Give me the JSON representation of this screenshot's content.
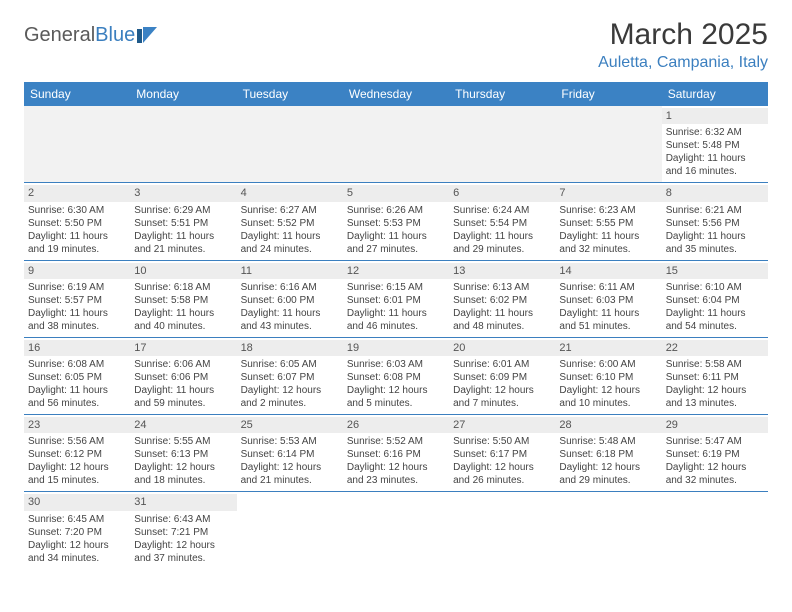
{
  "logo": {
    "part1": "General",
    "part2": "Blue"
  },
  "title": "March 2025",
  "subtitle": "Auletta, Campania, Italy",
  "columns": [
    "Sunday",
    "Monday",
    "Tuesday",
    "Wednesday",
    "Thursday",
    "Friday",
    "Saturday"
  ],
  "colors": {
    "header_bg": "#3b82c4",
    "header_text": "#ffffff",
    "accent": "#3b7fbf",
    "daynum_bg": "#ededed",
    "text": "#444444"
  },
  "weeks": [
    [
      null,
      null,
      null,
      null,
      null,
      null,
      {
        "n": "1",
        "sr": "Sunrise: 6:32 AM",
        "ss": "Sunset: 5:48 PM",
        "dl1": "Daylight: 11 hours",
        "dl2": "and 16 minutes."
      }
    ],
    [
      {
        "n": "2",
        "sr": "Sunrise: 6:30 AM",
        "ss": "Sunset: 5:50 PM",
        "dl1": "Daylight: 11 hours",
        "dl2": "and 19 minutes."
      },
      {
        "n": "3",
        "sr": "Sunrise: 6:29 AM",
        "ss": "Sunset: 5:51 PM",
        "dl1": "Daylight: 11 hours",
        "dl2": "and 21 minutes."
      },
      {
        "n": "4",
        "sr": "Sunrise: 6:27 AM",
        "ss": "Sunset: 5:52 PM",
        "dl1": "Daylight: 11 hours",
        "dl2": "and 24 minutes."
      },
      {
        "n": "5",
        "sr": "Sunrise: 6:26 AM",
        "ss": "Sunset: 5:53 PM",
        "dl1": "Daylight: 11 hours",
        "dl2": "and 27 minutes."
      },
      {
        "n": "6",
        "sr": "Sunrise: 6:24 AM",
        "ss": "Sunset: 5:54 PM",
        "dl1": "Daylight: 11 hours",
        "dl2": "and 29 minutes."
      },
      {
        "n": "7",
        "sr": "Sunrise: 6:23 AM",
        "ss": "Sunset: 5:55 PM",
        "dl1": "Daylight: 11 hours",
        "dl2": "and 32 minutes."
      },
      {
        "n": "8",
        "sr": "Sunrise: 6:21 AM",
        "ss": "Sunset: 5:56 PM",
        "dl1": "Daylight: 11 hours",
        "dl2": "and 35 minutes."
      }
    ],
    [
      {
        "n": "9",
        "sr": "Sunrise: 6:19 AM",
        "ss": "Sunset: 5:57 PM",
        "dl1": "Daylight: 11 hours",
        "dl2": "and 38 minutes."
      },
      {
        "n": "10",
        "sr": "Sunrise: 6:18 AM",
        "ss": "Sunset: 5:58 PM",
        "dl1": "Daylight: 11 hours",
        "dl2": "and 40 minutes."
      },
      {
        "n": "11",
        "sr": "Sunrise: 6:16 AM",
        "ss": "Sunset: 6:00 PM",
        "dl1": "Daylight: 11 hours",
        "dl2": "and 43 minutes."
      },
      {
        "n": "12",
        "sr": "Sunrise: 6:15 AM",
        "ss": "Sunset: 6:01 PM",
        "dl1": "Daylight: 11 hours",
        "dl2": "and 46 minutes."
      },
      {
        "n": "13",
        "sr": "Sunrise: 6:13 AM",
        "ss": "Sunset: 6:02 PM",
        "dl1": "Daylight: 11 hours",
        "dl2": "and 48 minutes."
      },
      {
        "n": "14",
        "sr": "Sunrise: 6:11 AM",
        "ss": "Sunset: 6:03 PM",
        "dl1": "Daylight: 11 hours",
        "dl2": "and 51 minutes."
      },
      {
        "n": "15",
        "sr": "Sunrise: 6:10 AM",
        "ss": "Sunset: 6:04 PM",
        "dl1": "Daylight: 11 hours",
        "dl2": "and 54 minutes."
      }
    ],
    [
      {
        "n": "16",
        "sr": "Sunrise: 6:08 AM",
        "ss": "Sunset: 6:05 PM",
        "dl1": "Daylight: 11 hours",
        "dl2": "and 56 minutes."
      },
      {
        "n": "17",
        "sr": "Sunrise: 6:06 AM",
        "ss": "Sunset: 6:06 PM",
        "dl1": "Daylight: 11 hours",
        "dl2": "and 59 minutes."
      },
      {
        "n": "18",
        "sr": "Sunrise: 6:05 AM",
        "ss": "Sunset: 6:07 PM",
        "dl1": "Daylight: 12 hours",
        "dl2": "and 2 minutes."
      },
      {
        "n": "19",
        "sr": "Sunrise: 6:03 AM",
        "ss": "Sunset: 6:08 PM",
        "dl1": "Daylight: 12 hours",
        "dl2": "and 5 minutes."
      },
      {
        "n": "20",
        "sr": "Sunrise: 6:01 AM",
        "ss": "Sunset: 6:09 PM",
        "dl1": "Daylight: 12 hours",
        "dl2": "and 7 minutes."
      },
      {
        "n": "21",
        "sr": "Sunrise: 6:00 AM",
        "ss": "Sunset: 6:10 PM",
        "dl1": "Daylight: 12 hours",
        "dl2": "and 10 minutes."
      },
      {
        "n": "22",
        "sr": "Sunrise: 5:58 AM",
        "ss": "Sunset: 6:11 PM",
        "dl1": "Daylight: 12 hours",
        "dl2": "and 13 minutes."
      }
    ],
    [
      {
        "n": "23",
        "sr": "Sunrise: 5:56 AM",
        "ss": "Sunset: 6:12 PM",
        "dl1": "Daylight: 12 hours",
        "dl2": "and 15 minutes."
      },
      {
        "n": "24",
        "sr": "Sunrise: 5:55 AM",
        "ss": "Sunset: 6:13 PM",
        "dl1": "Daylight: 12 hours",
        "dl2": "and 18 minutes."
      },
      {
        "n": "25",
        "sr": "Sunrise: 5:53 AM",
        "ss": "Sunset: 6:14 PM",
        "dl1": "Daylight: 12 hours",
        "dl2": "and 21 minutes."
      },
      {
        "n": "26",
        "sr": "Sunrise: 5:52 AM",
        "ss": "Sunset: 6:16 PM",
        "dl1": "Daylight: 12 hours",
        "dl2": "and 23 minutes."
      },
      {
        "n": "27",
        "sr": "Sunrise: 5:50 AM",
        "ss": "Sunset: 6:17 PM",
        "dl1": "Daylight: 12 hours",
        "dl2": "and 26 minutes."
      },
      {
        "n": "28",
        "sr": "Sunrise: 5:48 AM",
        "ss": "Sunset: 6:18 PM",
        "dl1": "Daylight: 12 hours",
        "dl2": "and 29 minutes."
      },
      {
        "n": "29",
        "sr": "Sunrise: 5:47 AM",
        "ss": "Sunset: 6:19 PM",
        "dl1": "Daylight: 12 hours",
        "dl2": "and 32 minutes."
      }
    ],
    [
      {
        "n": "30",
        "sr": "Sunrise: 6:45 AM",
        "ss": "Sunset: 7:20 PM",
        "dl1": "Daylight: 12 hours",
        "dl2": "and 34 minutes."
      },
      {
        "n": "31",
        "sr": "Sunrise: 6:43 AM",
        "ss": "Sunset: 7:21 PM",
        "dl1": "Daylight: 12 hours",
        "dl2": "and 37 minutes."
      },
      null,
      null,
      null,
      null,
      null
    ]
  ]
}
